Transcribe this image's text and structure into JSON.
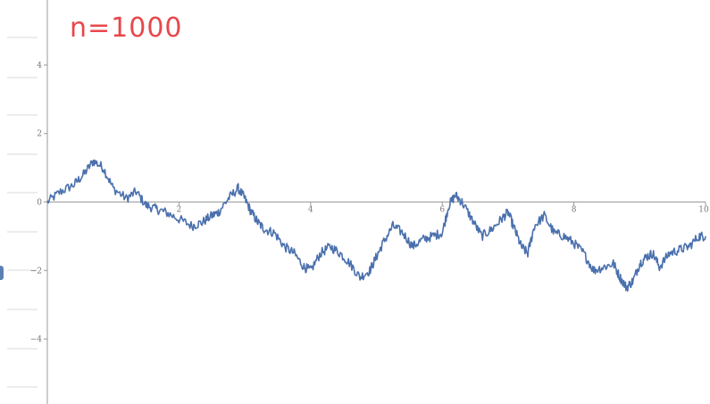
{
  "annotation": {
    "text": "n=1000",
    "color": "#e8474b"
  },
  "chart_data": {
    "type": "line",
    "title": "",
    "xlabel": "",
    "ylabel": "",
    "xlim": [
      0,
      10
    ],
    "ylim": [
      -5.9,
      5.9
    ],
    "x_ticks": [
      0,
      2,
      4,
      6,
      8,
      10
    ],
    "y_ticks": [
      -4,
      -2,
      0,
      2,
      4
    ],
    "grid": false,
    "legend": "none",
    "line_color": "#4a70ad",
    "series": [
      {
        "name": "",
        "x": [
          0,
          0.2,
          0.4,
          0.55,
          0.7,
          0.85,
          1.0,
          1.2,
          1.35,
          1.5,
          1.65,
          1.8,
          2.0,
          2.2,
          2.35,
          2.5,
          2.6,
          2.75,
          2.9,
          3.0,
          3.1,
          3.2,
          3.3,
          3.45,
          3.6,
          3.75,
          3.9,
          4.0,
          4.15,
          4.3,
          4.45,
          4.6,
          4.75,
          4.9,
          5.0,
          5.1,
          5.25,
          5.4,
          5.55,
          5.7,
          5.85,
          6.0,
          6.1,
          6.2,
          6.3,
          6.45,
          6.6,
          6.75,
          6.9,
          7.0,
          7.1,
          7.2,
          7.3,
          7.4,
          7.55,
          7.7,
          7.85,
          8.0,
          8.15,
          8.3,
          8.45,
          8.6,
          8.7,
          8.8,
          8.9,
          9.0,
          9.1,
          9.2,
          9.3,
          9.45,
          9.6,
          9.75,
          9.9,
          10.0
        ],
        "y": [
          0.0,
          0.3,
          0.5,
          0.8,
          1.2,
          1.0,
          0.4,
          0.1,
          0.3,
          -0.1,
          -0.2,
          -0.3,
          -0.5,
          -0.7,
          -0.6,
          -0.4,
          -0.3,
          0.1,
          0.4,
          0.1,
          -0.3,
          -0.6,
          -0.8,
          -0.9,
          -1.3,
          -1.5,
          -1.9,
          -2.0,
          -1.5,
          -1.3,
          -1.5,
          -1.8,
          -2.2,
          -2.0,
          -1.6,
          -1.2,
          -0.7,
          -0.9,
          -1.3,
          -1.1,
          -1.0,
          -0.9,
          -0.1,
          0.2,
          0.0,
          -0.5,
          -1.0,
          -0.8,
          -0.5,
          -0.3,
          -0.8,
          -1.3,
          -1.5,
          -0.7,
          -0.4,
          -0.9,
          -1.0,
          -1.2,
          -1.5,
          -2.0,
          -1.9,
          -1.8,
          -2.2,
          -2.5,
          -2.3,
          -1.8,
          -1.6,
          -1.5,
          -1.9,
          -1.5,
          -1.4,
          -1.3,
          -1.0,
          -1.0
        ]
      }
    ]
  }
}
